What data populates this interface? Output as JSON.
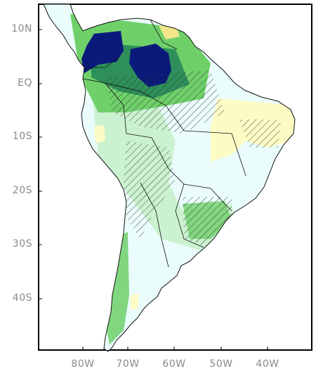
{
  "map": {
    "y_axis_labels": [
      "10N",
      "EQ",
      "10S",
      "20S",
      "30S",
      "40S"
    ],
    "x_axis_labels": [
      "80W",
      "70W",
      "60W",
      "50W",
      "40W"
    ],
    "colors": {
      "strong_positive": "#0a1a7a",
      "mid_positive": "#2e8f5a",
      "light_positive": "#6fd06a",
      "weak_positive": "#c6f0c8",
      "near_zero": "#eafcfb",
      "weak_negative": "#fdfbc4",
      "mid_negative": "#f3e58a",
      "ocean": "#ffffff",
      "border": "#111111"
    }
  }
}
